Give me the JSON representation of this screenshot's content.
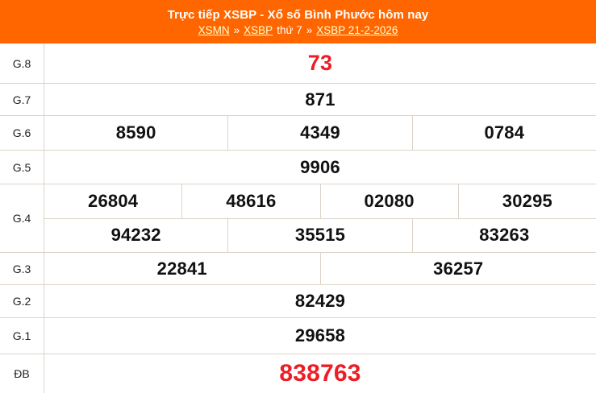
{
  "colors": {
    "accent": "#ff6600",
    "hot_number": "#ee1c25",
    "link": "#ffffcc",
    "border": "#dcd4c8"
  },
  "header": {
    "title": "Trực tiếp XSBP - Xổ số Bình Phước hôm nay",
    "breadcrumb": {
      "separator": "»",
      "weekday": "thứ 7",
      "links": [
        {
          "label": "XSMN"
        },
        {
          "label": "XSBP"
        },
        {
          "label": "XSBP 21-2-2026"
        }
      ]
    }
  },
  "table": {
    "rows": [
      {
        "key": "g8",
        "label": "G.8",
        "highlight": true,
        "groups": [
          [
            "73"
          ]
        ]
      },
      {
        "key": "g7",
        "label": "G.7",
        "highlight": false,
        "groups": [
          [
            "871"
          ]
        ]
      },
      {
        "key": "g6",
        "label": "G.6",
        "highlight": false,
        "groups": [
          [
            "8590",
            "4349",
            "0784"
          ]
        ]
      },
      {
        "key": "g5",
        "label": "G.5",
        "highlight": false,
        "groups": [
          [
            "9906"
          ]
        ]
      },
      {
        "key": "g4",
        "label": "G.4",
        "highlight": false,
        "groups": [
          [
            "26804",
            "48616",
            "02080",
            "30295"
          ],
          [
            "94232",
            "35515",
            "83263"
          ]
        ]
      },
      {
        "key": "g3",
        "label": "G.3",
        "highlight": false,
        "groups": [
          [
            "22841",
            "36257"
          ]
        ]
      },
      {
        "key": "g2",
        "label": "G.2",
        "highlight": false,
        "groups": [
          [
            "82429"
          ]
        ]
      },
      {
        "key": "g1",
        "label": "G.1",
        "highlight": false,
        "groups": [
          [
            "29658"
          ]
        ]
      },
      {
        "key": "db",
        "label": "ĐB",
        "highlight": true,
        "groups": [
          [
            "838763"
          ]
        ]
      }
    ]
  }
}
